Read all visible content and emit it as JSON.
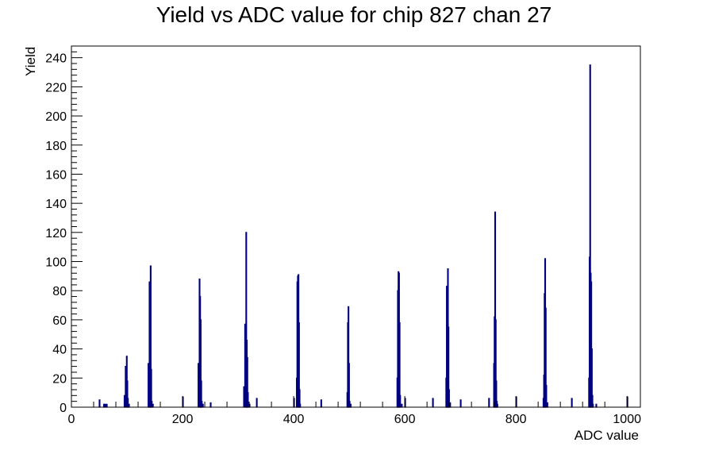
{
  "chart_data": {
    "type": "bar",
    "title": "Yield vs ADC value for chip 827 chan 27",
    "xlabel": "ADC value",
    "ylabel": "Yield",
    "xlim": [
      0,
      1024
    ],
    "ylim": [
      0,
      248
    ],
    "grid": false,
    "legend": "none",
    "x_ticks": [
      "0",
      "200",
      "400",
      "600",
      "800",
      "1000"
    ],
    "y_ticks": [
      "0",
      "20",
      "40",
      "60",
      "80",
      "100",
      "120",
      "140",
      "160",
      "180",
      "200",
      "220",
      "240"
    ],
    "series": [
      {
        "x": [
          50,
          58,
          60,
          63,
          95,
          97,
          99,
          100,
          101,
          103,
          138,
          140,
          141,
          142,
          143,
          144,
          146,
          200,
          228,
          230,
          231,
          232,
          233,
          234,
          236,
          250,
          310,
          312,
          314,
          315,
          316,
          317,
          320,
          333,
          400,
          405,
          406,
          407,
          408,
          409,
          410,
          411,
          449,
          496,
          497,
          498,
          499,
          500,
          502,
          586,
          587,
          588,
          589,
          590,
          591,
          594,
          600,
          650,
          674,
          675,
          676,
          677,
          678,
          679,
          681,
          700,
          751,
          760,
          761,
          762,
          763,
          764,
          765,
          766,
          800,
          849,
          850,
          851,
          852,
          853,
          854,
          856,
          900,
          931,
          932,
          933,
          934,
          935,
          936,
          937,
          938,
          944,
          1000
        ],
        "values": [
          5,
          2,
          2,
          2,
          8,
          28,
          35,
          18,
          6,
          2,
          30,
          86,
          72,
          97,
          26,
          4,
          2,
          7,
          30,
          88,
          76,
          60,
          18,
          4,
          2,
          3,
          14,
          57,
          120,
          46,
          34,
          10,
          2,
          6,
          6,
          20,
          86,
          90,
          91,
          58,
          12,
          2,
          5,
          10,
          58,
          69,
          30,
          4,
          2,
          20,
          80,
          93,
          92,
          58,
          8,
          2,
          6,
          6,
          20,
          83,
          82,
          95,
          55,
          12,
          3,
          5,
          6,
          30,
          62,
          134,
          60,
          18,
          4,
          2,
          7,
          6,
          22,
          78,
          102,
          68,
          15,
          3,
          6,
          20,
          103,
          235,
          92,
          86,
          40,
          8,
          2,
          2,
          7
        ]
      }
    ],
    "color": "#00007f"
  }
}
